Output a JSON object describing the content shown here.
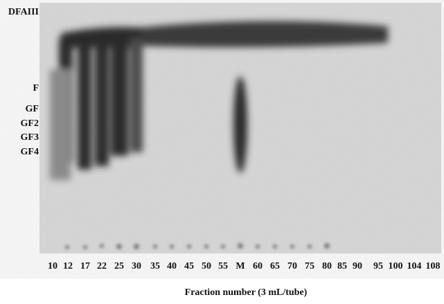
{
  "plate": {
    "row_labels": [
      "DFAIII",
      "F",
      "GF",
      "GF2",
      "GF3",
      "GF4"
    ],
    "lanes": [
      "10",
      "12",
      "17",
      "22",
      "25",
      "30",
      "35",
      "40",
      "45",
      "50",
      "55",
      "M",
      "60",
      "65",
      "70",
      "75",
      "80",
      "85",
      "90",
      "95",
      "100",
      "104",
      "108"
    ],
    "axis_title": "Fraction number (3 mL/tube)"
  }
}
